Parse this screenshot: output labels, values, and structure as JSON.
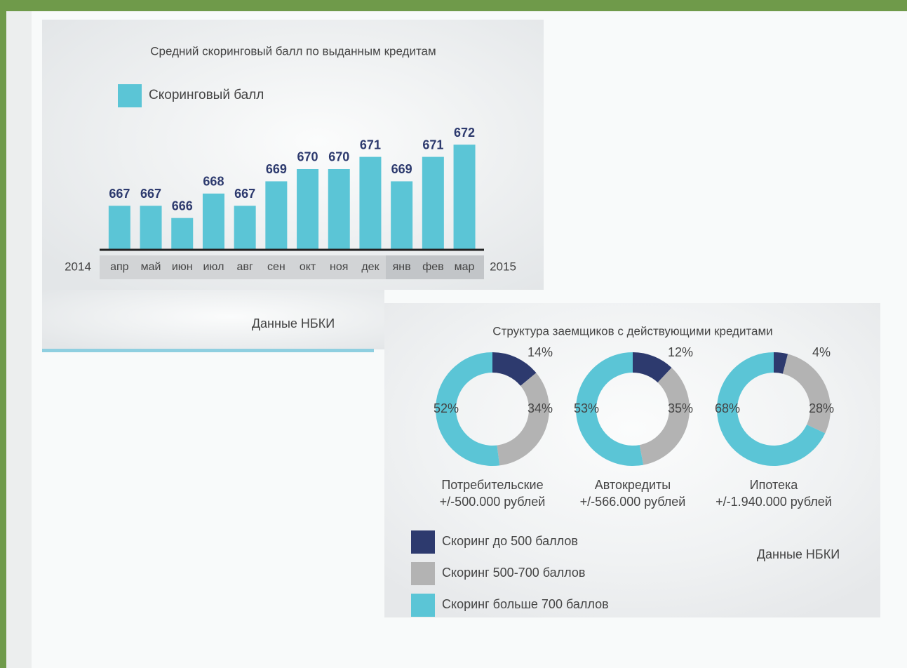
{
  "chart_data": [
    {
      "type": "bar",
      "title": "Средний скоринговый балл по выданным кредитам",
      "legend": "Скоринговый балл",
      "categories": [
        "апр",
        "май",
        "июн",
        "июл",
        "авг",
        "сен",
        "окт",
        "ноя",
        "дек",
        "янв",
        "фев",
        "мар"
      ],
      "values": [
        667,
        667,
        666,
        668,
        667,
        669,
        670,
        670,
        671,
        669,
        671,
        672
      ],
      "color": "#5bc5d6",
      "ylim": [
        663.4,
        673.5
      ],
      "period_labels": [
        "2014",
        "2015"
      ],
      "source": "Данные НБКИ"
    },
    {
      "type": "donut",
      "title": "Структура заемщиков с действующими кредитами",
      "categories": [
        "Скоринг до 500 баллов",
        "Скоринг 500-700 баллов",
        "Скоринг больше 700 баллов"
      ],
      "colors": [
        "#2d3a6e",
        "#b3b3b3",
        "#5bc5d6"
      ],
      "charts": [
        {
          "name": "Потребительские",
          "subtitle": "+/-500.000 рублей",
          "values": [
            14,
            34,
            52
          ],
          "value_labels": [
            "14%",
            "34%",
            "52%"
          ]
        },
        {
          "name": "Автокредиты",
          "subtitle": "+/-566.000 рублей",
          "values": [
            12,
            35,
            53
          ],
          "value_labels": [
            "12%",
            "35%",
            "53%"
          ]
        },
        {
          "name": "Ипотека",
          "subtitle": "+/-1.940.000 рублей",
          "values": [
            4,
            28,
            68
          ],
          "value_labels": [
            "4%",
            "28%",
            "68%"
          ]
        }
      ],
      "source": "Данные НБКИ"
    }
  ]
}
